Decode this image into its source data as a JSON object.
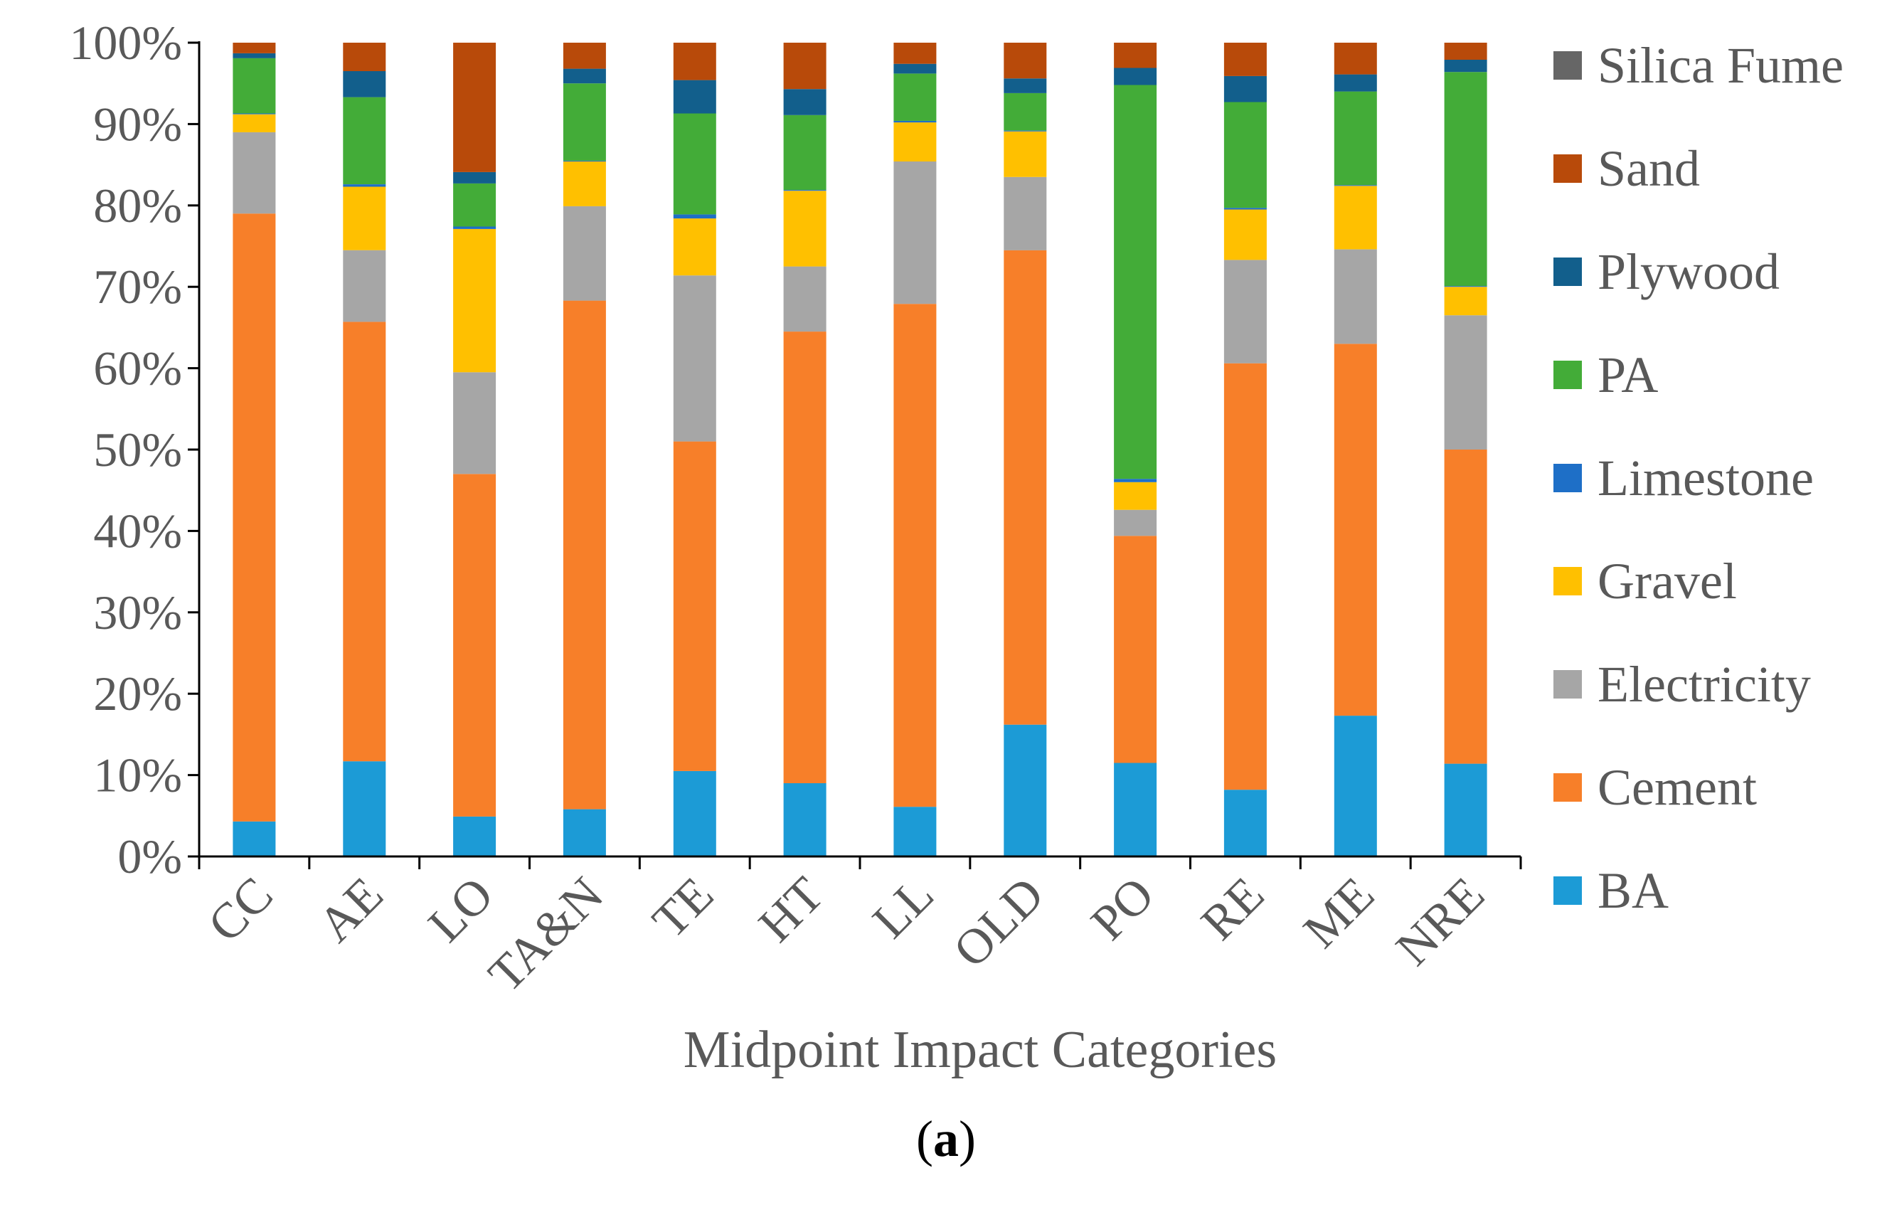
{
  "chart_data": {
    "type": "bar",
    "stacked": true,
    "normalized": true,
    "xlabel": "Midpoint Impact Categories",
    "ylabel": "",
    "ylim": [
      0,
      100
    ],
    "yticks": [
      "0%",
      "10%",
      "20%",
      "30%",
      "40%",
      "50%",
      "60%",
      "70%",
      "80%",
      "90%",
      "100%"
    ],
    "categories": [
      "CC",
      "AE",
      "LO",
      "TA&N",
      "TE",
      "HT",
      "LL",
      "OLD",
      "PO",
      "RE",
      "ME",
      "NRE"
    ],
    "legend_position": "right",
    "series": [
      {
        "name": "BA",
        "color": "#1C9BD6",
        "values": [
          4.3,
          11.7,
          4.9,
          5.8,
          10.5,
          9.0,
          6.1,
          16.2,
          11.5,
          8.2,
          17.3,
          11.4
        ]
      },
      {
        "name": "Cement",
        "color": "#F77F29",
        "values": [
          74.7,
          54.0,
          42.1,
          62.5,
          40.5,
          55.5,
          61.8,
          58.3,
          27.9,
          52.4,
          45.7,
          38.6
        ]
      },
      {
        "name": "Electricity",
        "color": "#A6A6A6",
        "values": [
          10.0,
          8.8,
          12.5,
          11.6,
          20.4,
          8.0,
          17.5,
          9.0,
          3.2,
          12.7,
          11.6,
          16.5
        ]
      },
      {
        "name": "Gravel",
        "color": "#FFC000",
        "values": [
          2.2,
          7.8,
          17.6,
          5.5,
          7.0,
          9.3,
          4.8,
          5.6,
          3.4,
          6.2,
          7.8,
          3.5
        ]
      },
      {
        "name": "Limestone",
        "color": "#1E6FC7",
        "values": [
          0.1,
          0.3,
          0.3,
          0.1,
          0.5,
          0.1,
          0.2,
          0.1,
          0.4,
          0.2,
          0.1,
          0.1
        ]
      },
      {
        "name": "PA",
        "color": "#43AC38",
        "values": [
          6.8,
          10.7,
          5.3,
          9.5,
          12.4,
          9.2,
          5.8,
          4.6,
          48.4,
          13.0,
          11.5,
          26.3
        ]
      },
      {
        "name": "Plywood",
        "color": "#125F8C",
        "values": [
          0.6,
          3.2,
          1.4,
          1.8,
          4.1,
          3.2,
          1.2,
          1.8,
          2.1,
          3.2,
          2.1,
          1.5
        ]
      },
      {
        "name": "Sand",
        "color": "#B84A0A",
        "values": [
          1.3,
          3.5,
          15.9,
          3.2,
          4.6,
          5.7,
          2.6,
          4.4,
          3.1,
          4.1,
          3.9,
          2.1
        ]
      },
      {
        "name": "Silica Fume",
        "color": "#666666",
        "values": [
          0.0,
          0.0,
          0.0,
          0.0,
          0.0,
          0.0,
          0.0,
          0.0,
          0.0,
          0.0,
          0.0,
          0.0
        ]
      }
    ]
  },
  "caption": {
    "open": "(",
    "letter": "a",
    "close": ")"
  }
}
